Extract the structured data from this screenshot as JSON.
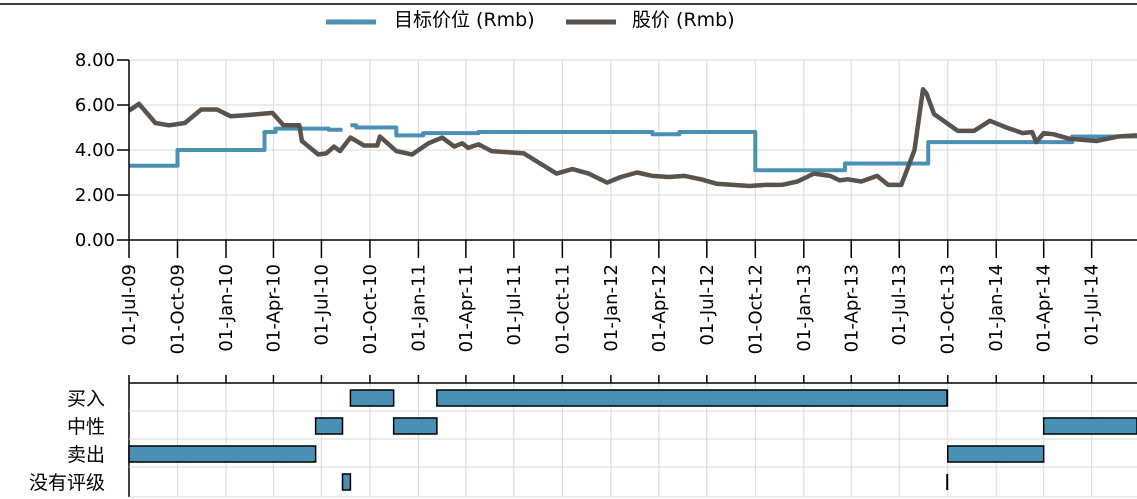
{
  "chart_data": [
    {
      "type": "line",
      "title": "",
      "xlabel": "",
      "ylabel": "",
      "ylim": [
        0,
        8
      ],
      "y_tick_labels": [
        "0.00",
        "2.00",
        "4.00",
        "6.00",
        "8.00"
      ],
      "x_range": [
        "2009-07-01",
        "2014-09-25"
      ],
      "x_tick_labels": [
        "01-Jul-09",
        "01-Oct-09",
        "01-Jan-10",
        "01-Apr-10",
        "01-Jul-10",
        "01-Oct-10",
        "01-Jan-11",
        "01-Apr-11",
        "01-Jul-11",
        "01-Oct-11",
        "01-Jan-12",
        "01-Apr-12",
        "01-Jul-12",
        "01-Oct-12",
        "01-Jan-13",
        "01-Apr-13",
        "01-Jul-13",
        "01-Oct-13",
        "01-Jan-14",
        "01-Apr-14",
        "01-Jul-14"
      ],
      "x_tick_dates": [
        "2009-07-01",
        "2009-10-01",
        "2010-01-01",
        "2010-04-01",
        "2010-07-01",
        "2010-10-01",
        "2011-01-01",
        "2011-04-01",
        "2011-07-01",
        "2011-10-01",
        "2012-01-01",
        "2012-04-01",
        "2012-07-01",
        "2012-10-01",
        "2013-01-01",
        "2013-04-01",
        "2013-07-01",
        "2013-10-01",
        "2014-01-01",
        "2014-04-01",
        "2014-07-01"
      ],
      "grid": true,
      "legend_position": "top-center",
      "series": [
        {
          "name": "目标价位 (Rmb)",
          "color": "#4a90b5",
          "step": true,
          "segments": [
            [
              {
                "x": "2009-07-01",
                "y": 3.3
              },
              {
                "x": "2009-10-01",
                "y": 3.3
              },
              {
                "x": "2009-10-01",
                "y": 4.0
              },
              {
                "x": "2010-03-15",
                "y": 4.0
              },
              {
                "x": "2010-03-15",
                "y": 4.8
              },
              {
                "x": "2010-04-05",
                "y": 4.8
              },
              {
                "x": "2010-04-05",
                "y": 4.95
              },
              {
                "x": "2010-07-15",
                "y": 4.95
              },
              {
                "x": "2010-07-15",
                "y": 4.9
              },
              {
                "x": "2010-08-10",
                "y": 4.9
              }
            ],
            [
              {
                "x": "2010-08-25",
                "y": 5.1
              },
              {
                "x": "2010-09-05",
                "y": 5.1
              },
              {
                "x": "2010-09-05",
                "y": 5.0
              },
              {
                "x": "2010-11-20",
                "y": 5.0
              },
              {
                "x": "2010-11-20",
                "y": 4.65
              },
              {
                "x": "2011-01-10",
                "y": 4.65
              },
              {
                "x": "2011-01-10",
                "y": 4.75
              },
              {
                "x": "2011-04-25",
                "y": 4.75
              },
              {
                "x": "2011-04-25",
                "y": 4.8
              },
              {
                "x": "2012-03-20",
                "y": 4.8
              },
              {
                "x": "2012-03-20",
                "y": 4.7
              },
              {
                "x": "2012-05-10",
                "y": 4.7
              },
              {
                "x": "2012-05-10",
                "y": 4.8
              },
              {
                "x": "2012-10-01",
                "y": 4.8
              },
              {
                "x": "2012-10-01",
                "y": 3.1
              },
              {
                "x": "2013-03-20",
                "y": 3.1
              },
              {
                "x": "2013-03-20",
                "y": 3.4
              },
              {
                "x": "2013-08-25",
                "y": 3.4
              },
              {
                "x": "2013-08-25",
                "y": 4.35
              },
              {
                "x": "2014-05-25",
                "y": 4.35
              },
              {
                "x": "2014-05-25",
                "y": 4.6
              },
              {
                "x": "2014-09-25",
                "y": 4.6
              }
            ]
          ]
        },
        {
          "name": "股价 (Rmb)",
          "color": "#5a534d",
          "step": false,
          "segments": [
            [
              {
                "x": "2009-07-01",
                "y": 5.75
              },
              {
                "x": "2009-07-20",
                "y": 6.05
              },
              {
                "x": "2009-08-20",
                "y": 5.2
              },
              {
                "x": "2009-09-15",
                "y": 5.1
              },
              {
                "x": "2009-10-15",
                "y": 5.2
              },
              {
                "x": "2009-11-15",
                "y": 5.8
              },
              {
                "x": "2009-12-15",
                "y": 5.8
              },
              {
                "x": "2010-01-10",
                "y": 5.5
              },
              {
                "x": "2010-02-10",
                "y": 5.55
              },
              {
                "x": "2010-03-30",
                "y": 5.65
              },
              {
                "x": "2010-04-20",
                "y": 5.1
              },
              {
                "x": "2010-05-20",
                "y": 5.1
              },
              {
                "x": "2010-05-25",
                "y": 4.4
              },
              {
                "x": "2010-06-25",
                "y": 3.8
              },
              {
                "x": "2010-07-10",
                "y": 3.85
              },
              {
                "x": "2010-07-25",
                "y": 4.15
              },
              {
                "x": "2010-08-05",
                "y": 3.95
              },
              {
                "x": "2010-08-25",
                "y": 4.55
              },
              {
                "x": "2010-09-20",
                "y": 4.2
              },
              {
                "x": "2010-10-15",
                "y": 4.2
              },
              {
                "x": "2010-10-20",
                "y": 4.6
              },
              {
                "x": "2010-11-20",
                "y": 3.95
              },
              {
                "x": "2010-12-20",
                "y": 3.8
              },
              {
                "x": "2011-01-20",
                "y": 4.3
              },
              {
                "x": "2011-02-15",
                "y": 4.55
              },
              {
                "x": "2011-03-10",
                "y": 4.15
              },
              {
                "x": "2011-03-25",
                "y": 4.3
              },
              {
                "x": "2011-04-05",
                "y": 4.1
              },
              {
                "x": "2011-04-25",
                "y": 4.25
              },
              {
                "x": "2011-05-20",
                "y": 3.95
              },
              {
                "x": "2011-06-20",
                "y": 3.9
              },
              {
                "x": "2011-07-20",
                "y": 3.85
              },
              {
                "x": "2011-08-20",
                "y": 3.4
              },
              {
                "x": "2011-09-20",
                "y": 2.95
              },
              {
                "x": "2011-10-20",
                "y": 3.15
              },
              {
                "x": "2011-11-20",
                "y": 2.95
              },
              {
                "x": "2011-12-25",
                "y": 2.55
              },
              {
                "x": "2012-01-20",
                "y": 2.8
              },
              {
                "x": "2012-02-20",
                "y": 3.0
              },
              {
                "x": "2012-03-20",
                "y": 2.85
              },
              {
                "x": "2012-04-20",
                "y": 2.8
              },
              {
                "x": "2012-05-20",
                "y": 2.85
              },
              {
                "x": "2012-06-20",
                "y": 2.7
              },
              {
                "x": "2012-07-20",
                "y": 2.5
              },
              {
                "x": "2012-08-20",
                "y": 2.45
              },
              {
                "x": "2012-09-20",
                "y": 2.4
              },
              {
                "x": "2012-10-20",
                "y": 2.45
              },
              {
                "x": "2012-11-20",
                "y": 2.45
              },
              {
                "x": "2012-12-20",
                "y": 2.6
              },
              {
                "x": "2013-01-20",
                "y": 2.95
              },
              {
                "x": "2013-02-20",
                "y": 2.85
              },
              {
                "x": "2013-03-10",
                "y": 2.65
              },
              {
                "x": "2013-03-25",
                "y": 2.7
              },
              {
                "x": "2013-04-20",
                "y": 2.6
              },
              {
                "x": "2013-05-20",
                "y": 2.85
              },
              {
                "x": "2013-06-10",
                "y": 2.45
              },
              {
                "x": "2013-07-05",
                "y": 2.45
              },
              {
                "x": "2013-07-30",
                "y": 4.0
              },
              {
                "x": "2013-08-15",
                "y": 6.7
              },
              {
                "x": "2013-08-22",
                "y": 6.5
              },
              {
                "x": "2013-09-05",
                "y": 5.6
              },
              {
                "x": "2013-10-20",
                "y": 4.85
              },
              {
                "x": "2013-11-20",
                "y": 4.85
              },
              {
                "x": "2013-12-20",
                "y": 5.3
              },
              {
                "x": "2014-01-20",
                "y": 5.0
              },
              {
                "x": "2014-02-20",
                "y": 4.75
              },
              {
                "x": "2014-03-10",
                "y": 4.8
              },
              {
                "x": "2014-03-18",
                "y": 4.35
              },
              {
                "x": "2014-04-01",
                "y": 4.75
              },
              {
                "x": "2014-04-20",
                "y": 4.7
              },
              {
                "x": "2014-05-20",
                "y": 4.5
              },
              {
                "x": "2014-07-10",
                "y": 4.4
              },
              {
                "x": "2014-08-20",
                "y": 4.6
              },
              {
                "x": "2014-09-25",
                "y": 4.65
              }
            ]
          ]
        }
      ]
    },
    {
      "type": "timeline",
      "categories": [
        "买入",
        "中性",
        "卖出",
        "没有评级"
      ],
      "bar_color": "#4a90b5",
      "bars": [
        {
          "category": "卖出",
          "start": "2009-07-01",
          "end": "2010-06-20"
        },
        {
          "category": "中性",
          "start": "2010-06-20",
          "end": "2010-08-10"
        },
        {
          "category": "没有评级",
          "start": "2010-08-10",
          "end": "2010-08-25"
        },
        {
          "category": "买入",
          "start": "2010-08-25",
          "end": "2010-11-15"
        },
        {
          "category": "中性",
          "start": "2010-11-15",
          "end": "2011-02-05"
        },
        {
          "category": "买入",
          "start": "2011-02-05",
          "end": "2013-09-30"
        },
        {
          "category": "卖出",
          "start": "2013-10-01",
          "end": "2014-04-01"
        },
        {
          "category": "中性",
          "start": "2014-04-01",
          "end": "2014-09-25"
        }
      ],
      "markers": [
        {
          "category": "买入",
          "date": "2013-09-30"
        },
        {
          "category": "没有评级",
          "date": "2013-09-30"
        }
      ]
    }
  ]
}
